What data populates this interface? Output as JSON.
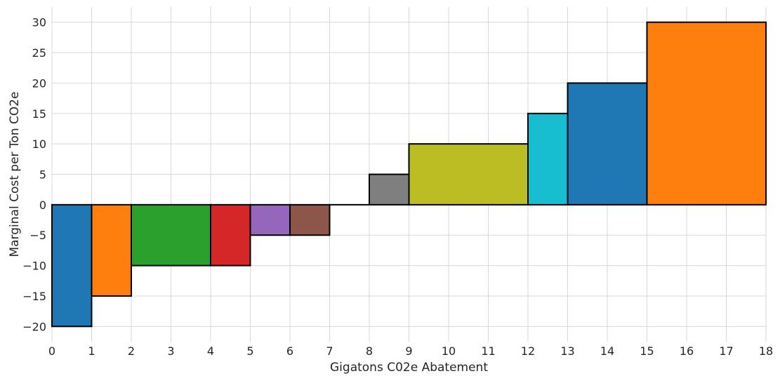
{
  "chart_data": {
    "type": "bar",
    "subtype": "variable-width-step",
    "title": "",
    "xlabel": "Gigatons C02e Abatement",
    "ylabel": "Marginal Cost per Ton CO2e",
    "xlim": [
      0,
      18
    ],
    "ylim": [
      -22.5,
      32.5
    ],
    "xticks": [
      "0",
      "1",
      "2",
      "3",
      "4",
      "5",
      "6",
      "7",
      "8",
      "9",
      "10",
      "11",
      "12",
      "13",
      "14",
      "15",
      "16",
      "17",
      "18"
    ],
    "yticks": [
      "−20",
      "−15",
      "−10",
      "−5",
      "0",
      "5",
      "10",
      "15",
      "20",
      "25",
      "30"
    ],
    "grid": true,
    "legend": "none",
    "series": [
      {
        "x_start": 0,
        "x_end": 1,
        "value": -20,
        "color": "#1f77b4"
      },
      {
        "x_start": 1,
        "x_end": 2,
        "value": -15,
        "color": "#ff7f0e"
      },
      {
        "x_start": 2,
        "x_end": 4,
        "value": -10,
        "color": "#2ca02c"
      },
      {
        "x_start": 4,
        "x_end": 5,
        "value": -10,
        "color": "#d62728"
      },
      {
        "x_start": 5,
        "x_end": 6,
        "value": -5,
        "color": "#9467bd"
      },
      {
        "x_start": 6,
        "x_end": 7,
        "value": -5,
        "color": "#8c564b"
      },
      {
        "x_start": 7,
        "x_end": 8,
        "value": 0,
        "color": "#e377c2"
      },
      {
        "x_start": 8,
        "x_end": 9,
        "value": 5,
        "color": "#7f7f7f"
      },
      {
        "x_start": 9,
        "x_end": 12,
        "value": 10,
        "color": "#bcbd22"
      },
      {
        "x_start": 12,
        "x_end": 13,
        "value": 15,
        "color": "#17becf"
      },
      {
        "x_start": 13,
        "x_end": 15,
        "value": 20,
        "color": "#1f77b4"
      },
      {
        "x_start": 15,
        "x_end": 18,
        "value": 30,
        "color": "#ff7f0e"
      }
    ]
  }
}
